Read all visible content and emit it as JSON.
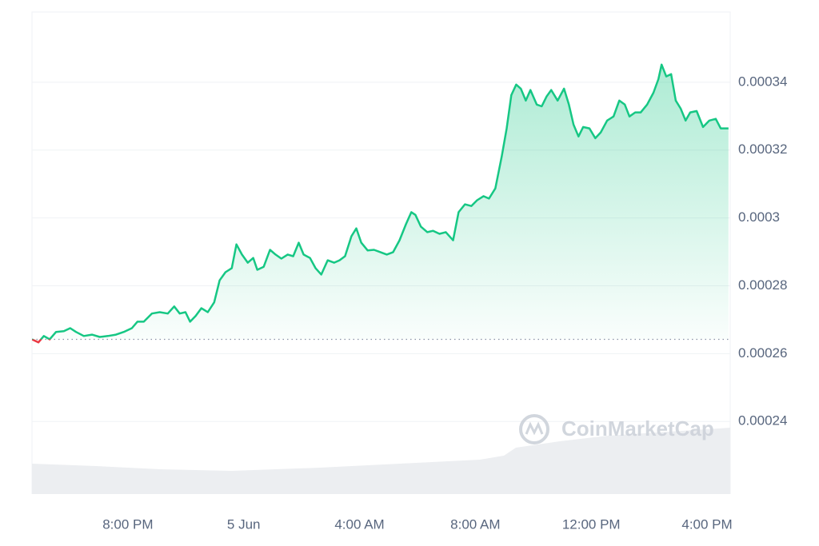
{
  "chart_data": {
    "type": "line",
    "watermark": "CoinMarketCap",
    "color": "#16c784",
    "below_color": "#ea3943",
    "reference_line": 0.0002642,
    "xlim": [
      16.69,
      40.8
    ],
    "xticks": [
      {
        "value": 20,
        "label": "8:00 PM"
      },
      {
        "value": 24,
        "label": "5 Jun"
      },
      {
        "value": 28,
        "label": "4:00 AM"
      },
      {
        "value": 32,
        "label": "8:00 AM"
      },
      {
        "value": 36,
        "label": "12:00 PM"
      },
      {
        "value": 40,
        "label": "4:00 PM"
      }
    ],
    "ylim": [
      0.0002186,
      0.0003607
    ],
    "yticks": [
      0.00024,
      0.00026,
      0.00028,
      0.0003,
      0.00032,
      0.00034
    ],
    "grid": true,
    "x": [
      16.69,
      16.91,
      17.1,
      17.3,
      17.52,
      17.79,
      18.01,
      18.21,
      18.48,
      18.76,
      19.03,
      19.31,
      19.59,
      19.86,
      20.14,
      20.33,
      20.55,
      20.83,
      21.1,
      21.38,
      21.6,
      21.79,
      21.99,
      22.15,
      22.34,
      22.54,
      22.76,
      22.98,
      23.17,
      23.37,
      23.59,
      23.75,
      23.94,
      24.14,
      24.33,
      24.47,
      24.69,
      24.91,
      25.1,
      25.3,
      25.52,
      25.71,
      25.9,
      26.07,
      26.29,
      26.48,
      26.68,
      26.9,
      27.12,
      27.31,
      27.5,
      27.72,
      27.89,
      28.06,
      28.28,
      28.5,
      28.72,
      28.94,
      29.16,
      29.38,
      29.6,
      29.79,
      29.93,
      30.12,
      30.34,
      30.54,
      30.76,
      30.98,
      31.23,
      31.42,
      31.64,
      31.86,
      32.06,
      32.28,
      32.47,
      32.69,
      32.91,
      33.08,
      33.24,
      33.41,
      33.57,
      33.74,
      33.9,
      34.12,
      34.29,
      34.46,
      34.62,
      34.84,
      35.06,
      35.23,
      35.39,
      35.56,
      35.72,
      35.94,
      36.14,
      36.33,
      36.55,
      36.77,
      36.97,
      37.16,
      37.32,
      37.52,
      37.71,
      37.93,
      38.15,
      38.32,
      38.43,
      38.59,
      38.76,
      38.92,
      39.09,
      39.26,
      39.42,
      39.64,
      39.86,
      40.08,
      40.3,
      40.47,
      40.74
    ],
    "values": [
      0.0002642,
      0.0002633,
      0.0002652,
      0.0002642,
      0.0002664,
      0.0002666,
      0.0002675,
      0.0002664,
      0.0002652,
      0.0002656,
      0.0002649,
      0.0002652,
      0.0002656,
      0.0002664,
      0.0002675,
      0.0002694,
      0.0002694,
      0.0002718,
      0.0002722,
      0.0002718,
      0.0002739,
      0.0002718,
      0.0002722,
      0.0002694,
      0.0002711,
      0.0002734,
      0.0002722,
      0.0002751,
      0.0002816,
      0.000284,
      0.0002852,
      0.0002922,
      0.0002892,
      0.0002868,
      0.0002882,
      0.0002847,
      0.0002856,
      0.0002906,
      0.0002892,
      0.000288,
      0.0002892,
      0.0002887,
      0.0002927,
      0.0002892,
      0.0002882,
      0.0002852,
      0.0002833,
      0.0002875,
      0.0002868,
      0.0002875,
      0.0002887,
      0.0002946,
      0.0002969,
      0.0002927,
      0.0002904,
      0.0002906,
      0.0002899,
      0.0002892,
      0.0002899,
      0.0002934,
      0.0002981,
      0.0003017,
      0.0003009,
      0.0002974,
      0.0002958,
      0.0002962,
      0.0002953,
      0.0002958,
      0.0002934,
      0.0003017,
      0.000304,
      0.0003035,
      0.0003052,
      0.0003064,
      0.0003057,
      0.0003087,
      0.0003181,
      0.0003264,
      0.0003362,
      0.0003393,
      0.0003381,
      0.0003346,
      0.0003377,
      0.0003334,
      0.0003329,
      0.0003358,
      0.0003377,
      0.0003346,
      0.0003381,
      0.0003334,
      0.0003275,
      0.000324,
      0.0003268,
      0.0003264,
      0.0003235,
      0.0003252,
      0.0003287,
      0.0003299,
      0.0003346,
      0.0003334,
      0.0003299,
      0.0003311,
      0.0003311,
      0.0003334,
      0.0003369,
      0.0003409,
      0.0003452,
      0.0003417,
      0.0003424,
      0.0003346,
      0.0003322,
      0.0003287,
      0.0003311,
      0.0003315,
      0.0003268,
      0.0003287,
      0.0003292,
      0.0003264,
      0.0003264
    ]
  }
}
